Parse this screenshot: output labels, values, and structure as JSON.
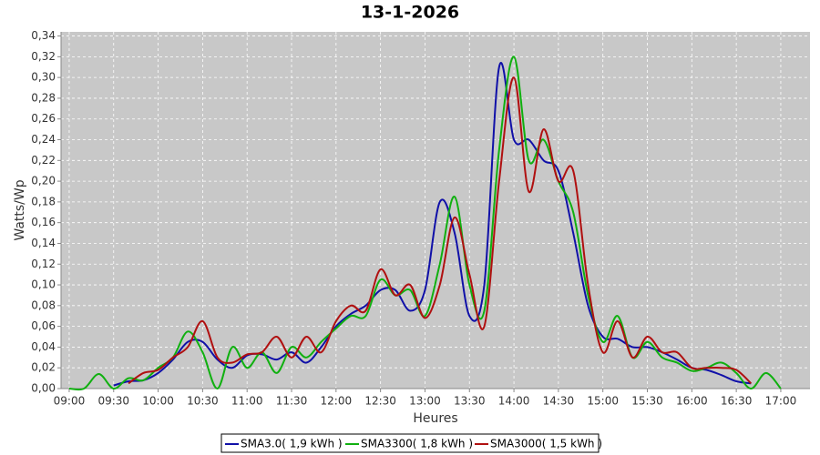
{
  "chart_data": {
    "type": "line",
    "title": "13-1-2026",
    "x_label": "Heures",
    "y_label": "Watts/Wp",
    "x": [
      540,
      550,
      560,
      570,
      580,
      590,
      600,
      610,
      620,
      630,
      640,
      650,
      660,
      670,
      680,
      690,
      700,
      710,
      720,
      730,
      740,
      750,
      760,
      770,
      780,
      790,
      800,
      810,
      820,
      830,
      840,
      850,
      860,
      870,
      880,
      890,
      900,
      910,
      920,
      930,
      940,
      950,
      960,
      970,
      980,
      990,
      1000,
      1010,
      1020
    ],
    "series": [
      {
        "name": "SMA3.0( 1,9 kWh )",
        "color": "#1010a8",
        "values": [
          null,
          null,
          null,
          0.003,
          0.007,
          0.008,
          0.015,
          0.028,
          0.045,
          0.045,
          0.028,
          0.02,
          0.032,
          0.033,
          0.028,
          0.035,
          0.025,
          0.04,
          0.06,
          0.072,
          0.08,
          0.095,
          0.095,
          0.075,
          0.095,
          0.18,
          0.15,
          0.07,
          0.1,
          0.31,
          0.24,
          0.24,
          0.22,
          0.21,
          0.15,
          0.08,
          0.05,
          0.048,
          0.04,
          0.04,
          0.035,
          0.028,
          0.02,
          0.018,
          0.013,
          0.007,
          0.005,
          null,
          null
        ]
      },
      {
        "name": "SMA3300( 1,8 kWh )",
        "color": "#10b010",
        "values": [
          0,
          0,
          0.014,
          0,
          0.01,
          0.008,
          0.02,
          0.03,
          0.055,
          0.035,
          0,
          0.04,
          0.02,
          0.035,
          0.015,
          0.04,
          0.03,
          0.045,
          0.058,
          0.07,
          0.07,
          0.105,
          0.09,
          0.095,
          0.07,
          0.12,
          0.185,
          0.1,
          0.075,
          0.23,
          0.32,
          0.22,
          0.24,
          0.2,
          0.17,
          0.09,
          0.045,
          0.07,
          0.03,
          0.045,
          0.03,
          0.025,
          0.017,
          0.02,
          0.025,
          0.015,
          0,
          0.015,
          0
        ]
      },
      {
        "name": "SMA3000( 1,5 kWh )",
        "color": "#b01010",
        "values": [
          null,
          null,
          null,
          null,
          0.005,
          0.015,
          0.018,
          0.03,
          0.04,
          0.065,
          0.03,
          0.025,
          0.033,
          0.035,
          0.05,
          0.03,
          0.05,
          0.035,
          0.065,
          0.08,
          0.075,
          0.115,
          0.09,
          0.1,
          0.068,
          0.1,
          0.165,
          0.11,
          0.06,
          0.2,
          0.3,
          0.19,
          0.25,
          0.2,
          0.21,
          0.1,
          0.035,
          0.065,
          0.03,
          0.05,
          0.035,
          0.035,
          0.02,
          0.02,
          0.02,
          0.018,
          0.005,
          null,
          null
        ]
      }
    ],
    "xlim": [
      534.5,
      1039.7
    ],
    "xticks": [
      {
        "value": 540,
        "label": "09:00"
      },
      {
        "value": 570,
        "label": "09:30"
      },
      {
        "value": 600,
        "label": "10:00"
      },
      {
        "value": 630,
        "label": "10:30"
      },
      {
        "value": 660,
        "label": "11:00"
      },
      {
        "value": 690,
        "label": "11:30"
      },
      {
        "value": 720,
        "label": "12:00"
      },
      {
        "value": 750,
        "label": "12:30"
      },
      {
        "value": 780,
        "label": "13:00"
      },
      {
        "value": 810,
        "label": "13:30"
      },
      {
        "value": 840,
        "label": "14:00"
      },
      {
        "value": 870,
        "label": "14:30"
      },
      {
        "value": 900,
        "label": "15:00"
      },
      {
        "value": 930,
        "label": "15:30"
      },
      {
        "value": 960,
        "label": "16:00"
      },
      {
        "value": 990,
        "label": "16:30"
      },
      {
        "value": 1020,
        "label": "17:00"
      }
    ],
    "ylim": [
      0,
      0.344
    ],
    "yticks": [
      {
        "value": 0,
        "label": "0,00"
      },
      {
        "value": 0.02,
        "label": "0,02"
      },
      {
        "value": 0.04,
        "label": "0,04"
      },
      {
        "value": 0.06,
        "label": "0,06"
      },
      {
        "value": 0.08,
        "label": "0,08"
      },
      {
        "value": 0.1,
        "label": "0,10"
      },
      {
        "value": 0.12,
        "label": "0,12"
      },
      {
        "value": 0.14,
        "label": "0,14"
      },
      {
        "value": 0.16,
        "label": "0,16"
      },
      {
        "value": 0.18,
        "label": "0,18"
      },
      {
        "value": 0.2,
        "label": "0,20"
      },
      {
        "value": 0.22,
        "label": "0,22"
      },
      {
        "value": 0.24,
        "label": "0,24"
      },
      {
        "value": 0.26,
        "label": "0,26"
      },
      {
        "value": 0.28,
        "label": "0,28"
      },
      {
        "value": 0.3,
        "label": "0,30"
      },
      {
        "value": 0.32,
        "label": "0,32"
      },
      {
        "value": 0.34,
        "label": "0,34"
      }
    ],
    "grid": true
  }
}
